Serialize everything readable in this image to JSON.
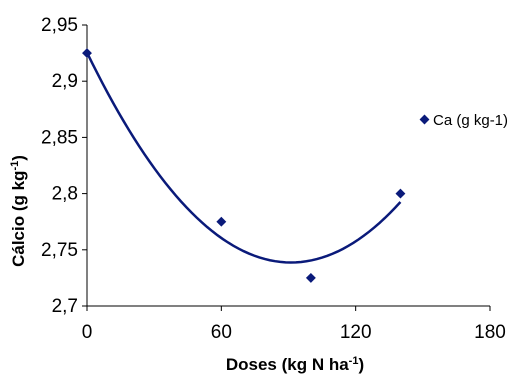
{
  "chart_data": {
    "type": "scatter",
    "xlabel": "Doses (kg N ha",
    "xlabel_sup": "-1",
    "xlabel_end": ")",
    "ylabel": "Cálcio (g kg",
    "ylabel_sup": "-1",
    "ylabel_end": ")",
    "xlim": [
      0,
      180
    ],
    "ylim": [
      2.7,
      2.95
    ],
    "x_ticks": [
      0,
      60,
      120,
      180
    ],
    "x_tick_labels": [
      "0",
      "60",
      "120",
      "180"
    ],
    "y_ticks": [
      2.7,
      2.75,
      2.8,
      2.85,
      2.9,
      2.95
    ],
    "y_tick_labels": [
      "2,7",
      "2,75",
      "2,8",
      "2,85",
      "2,9",
      "2,95"
    ],
    "grid": false,
    "legend_position": "right",
    "colors": {
      "series": "#0a1a7a",
      "axis": "#000000"
    },
    "series": [
      {
        "name": "Ca (g kg-1)",
        "points": [
          {
            "x": 0,
            "y": 2.925
          },
          {
            "x": 60,
            "y": 2.775
          },
          {
            "x": 100,
            "y": 2.725
          },
          {
            "x": 140,
            "y": 2.8
          }
        ]
      }
    ],
    "trendline": {
      "type": "quadratic",
      "x_range": [
        0,
        140
      ],
      "coefficients": [
        2.9255,
        -0.0041,
        2.25e-05
      ]
    }
  }
}
